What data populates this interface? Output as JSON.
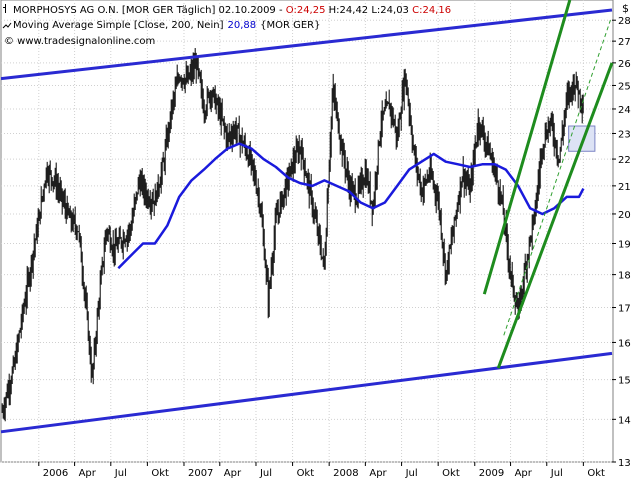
{
  "header": {
    "title_prefix": "MORPHOSYS AG O.N. [MOR GER  Täglich] 02.10.2009 - ",
    "ohlc_open": "O:24,25",
    "ohlc_high": " H:24,42",
    "ohlc_low": " L:24,03",
    "ohlc_close": " C:24,16",
    "ma_label": "Moving Average Simple [Close, 200, Nein]",
    "ma_value": "20,88",
    "ma_suffix": "{MOR GER}",
    "website": "© www.tradesignalonline.com"
  },
  "colors": {
    "price": "#000000",
    "moving_average": "#1a1adc",
    "channel": "#2a2ad2",
    "trend": "#1e8c1e",
    "trend_dashed": "#2f9f2f",
    "open_text": "#cc0000",
    "close_text": "#cc0000",
    "ma_value_text": "#0000cc",
    "grid": "#d0d0d0",
    "highlight_box": "#dde3f5"
  },
  "chart_data": {
    "type": "line",
    "title": "MORPHOSYS AG O.N. [MOR GER  Täglich] 02.10.2009",
    "xlabel": "",
    "ylabel": "",
    "y_unit_label": "$",
    "ylim": [
      13,
      29
    ],
    "y_scale": "log",
    "y_ticks": [
      13,
      14,
      15,
      16,
      17,
      18,
      19,
      20,
      21,
      22,
      23,
      24,
      25,
      26,
      27,
      28
    ],
    "x_ticks": [
      {
        "date": "2006-01-01",
        "label": "2006"
      },
      {
        "date": "2006-04-01",
        "label": "Apr"
      },
      {
        "date": "2006-07-01",
        "label": "Jul"
      },
      {
        "date": "2006-10-01",
        "label": "Okt"
      },
      {
        "date": "2007-01-01",
        "label": "2007"
      },
      {
        "date": "2007-04-01",
        "label": "Apr"
      },
      {
        "date": "2007-07-01",
        "label": "Jul"
      },
      {
        "date": "2007-10-01",
        "label": "Okt"
      },
      {
        "date": "2008-01-01",
        "label": "2008"
      },
      {
        "date": "2008-04-01",
        "label": "Apr"
      },
      {
        "date": "2008-07-01",
        "label": "Jul"
      },
      {
        "date": "2008-10-01",
        "label": "Okt"
      },
      {
        "date": "2009-01-01",
        "label": "2009"
      },
      {
        "date": "2009-04-01",
        "label": "Apr"
      },
      {
        "date": "2009-07-01",
        "label": "Jul"
      },
      {
        "date": "2009-10-01",
        "label": "Okt"
      }
    ],
    "grid": true,
    "legend": "top-left",
    "x_range": [
      "2005-09-28",
      "2009-12-12"
    ],
    "series": [
      {
        "name": "MORPHOSYS AG O.N.",
        "kind": "daily_bars",
        "x": [
          "2005-10-01",
          "2005-11-01",
          "2005-12-01",
          "2006-01-01",
          "2006-01-20",
          "2006-02-10",
          "2006-03-01",
          "2006-03-20",
          "2006-04-10",
          "2006-04-25",
          "2006-05-15",
          "2006-06-01",
          "2006-06-20",
          "2006-07-10",
          "2006-08-01",
          "2006-08-20",
          "2006-09-10",
          "2006-10-01",
          "2006-10-20",
          "2006-11-10",
          "2006-12-01",
          "2006-12-20",
          "2007-01-10",
          "2007-02-01",
          "2007-02-20",
          "2007-03-10",
          "2007-04-01",
          "2007-04-20",
          "2007-05-10",
          "2007-06-01",
          "2007-06-20",
          "2007-07-10",
          "2007-08-01",
          "2007-08-20",
          "2007-09-10",
          "2007-10-01",
          "2007-10-20",
          "2007-11-10",
          "2007-12-01",
          "2007-12-20",
          "2008-01-10",
          "2008-02-01",
          "2008-02-20",
          "2008-03-10",
          "2008-04-01",
          "2008-04-20",
          "2008-05-10",
          "2008-06-01",
          "2008-06-20",
          "2008-07-10",
          "2008-08-01",
          "2008-08-20",
          "2008-09-10",
          "2008-10-01",
          "2008-10-20",
          "2008-11-10",
          "2008-12-01",
          "2008-12-20",
          "2009-01-10",
          "2009-02-01",
          "2009-02-20",
          "2009-03-10",
          "2009-04-01",
          "2009-04-20",
          "2009-05-10",
          "2009-06-01",
          "2009-06-20",
          "2009-07-10",
          "2009-08-01",
          "2009-08-20",
          "2009-09-10",
          "2009-10-01"
        ],
        "values": [
          14.2,
          15.4,
          17.5,
          19.8,
          21.6,
          21.2,
          20.5,
          19.8,
          19.5,
          17.6,
          15.0,
          17.2,
          19.5,
          18.8,
          19.2,
          19.5,
          21.2,
          20.6,
          20.5,
          21.8,
          24.0,
          25.5,
          25.2,
          26.0,
          24.0,
          24.8,
          23.8,
          22.8,
          23.2,
          22.5,
          21.8,
          20.5,
          17.2,
          19.8,
          20.8,
          21.8,
          22.5,
          21.0,
          19.5,
          18.2,
          24.8,
          22.5,
          21.0,
          20.6,
          21.5,
          20.2,
          23.5,
          24.2,
          22.8,
          25.5,
          22.2,
          20.8,
          21.5,
          20.5,
          18.0,
          19.6,
          21.5,
          20.8,
          23.5,
          22.5,
          21.6,
          20.4,
          18.0,
          16.8,
          18.4,
          20.0,
          22.6,
          23.5,
          22.0,
          24.4,
          25.2,
          24.16
        ]
      },
      {
        "name": "Moving Average Simple [Close, 200, Nein]",
        "x": [
          "2006-07-20",
          "2006-08-20",
          "2006-09-20",
          "2006-10-20",
          "2006-11-20",
          "2006-12-20",
          "2007-01-20",
          "2007-02-20",
          "2007-03-20",
          "2007-04-20",
          "2007-05-20",
          "2007-06-20",
          "2007-07-20",
          "2007-08-20",
          "2007-09-20",
          "2007-10-20",
          "2007-11-20",
          "2007-12-20",
          "2008-01-20",
          "2008-02-20",
          "2008-03-20",
          "2008-04-20",
          "2008-05-20",
          "2008-06-20",
          "2008-07-20",
          "2008-08-20",
          "2008-09-20",
          "2008-10-20",
          "2008-11-20",
          "2008-12-20",
          "2009-01-20",
          "2009-02-20",
          "2009-03-20",
          "2009-04-20",
          "2009-05-20",
          "2009-06-20",
          "2009-07-20",
          "2009-08-20",
          "2009-09-20",
          "2009-10-01"
        ],
        "values": [
          18.2,
          18.6,
          19.0,
          19.0,
          19.6,
          20.6,
          21.2,
          21.6,
          22.0,
          22.4,
          22.6,
          22.4,
          22.0,
          21.7,
          21.3,
          21.1,
          21.0,
          21.2,
          21.0,
          20.8,
          20.4,
          20.2,
          20.4,
          21.0,
          21.6,
          21.9,
          22.2,
          21.9,
          21.8,
          21.7,
          21.8,
          21.8,
          21.6,
          21.0,
          20.2,
          20.0,
          20.2,
          20.6,
          20.6,
          20.9
        ]
      }
    ],
    "trendlines": [
      {
        "name": "channel-top",
        "x": [
          "2005-09-28",
          "2009-12-12"
        ],
        "y": [
          25.3,
          28.5
        ],
        "style": "solid"
      },
      {
        "name": "channel-bottom",
        "x": [
          "2005-09-28",
          "2009-12-12"
        ],
        "y": [
          13.7,
          15.7
        ],
        "style": "solid"
      },
      {
        "name": "trend-up-outer",
        "x": [
          "2009-01-25",
          "2009-08-28"
        ],
        "y": [
          17.4,
          29.0
        ],
        "style": "solid"
      },
      {
        "name": "trend-up-inner",
        "x": [
          "2009-03-01",
          "2009-12-12"
        ],
        "y": [
          15.3,
          26.0
        ],
        "style": "solid"
      },
      {
        "name": "trend-up-dashed",
        "x": [
          "2009-03-15",
          "2009-12-08"
        ],
        "y": [
          16.2,
          28.0
        ],
        "style": "dashed"
      }
    ],
    "highlight_box": {
      "x": [
        "2009-08-25",
        "2009-10-30"
      ],
      "y": [
        22.3,
        23.3
      ]
    }
  }
}
